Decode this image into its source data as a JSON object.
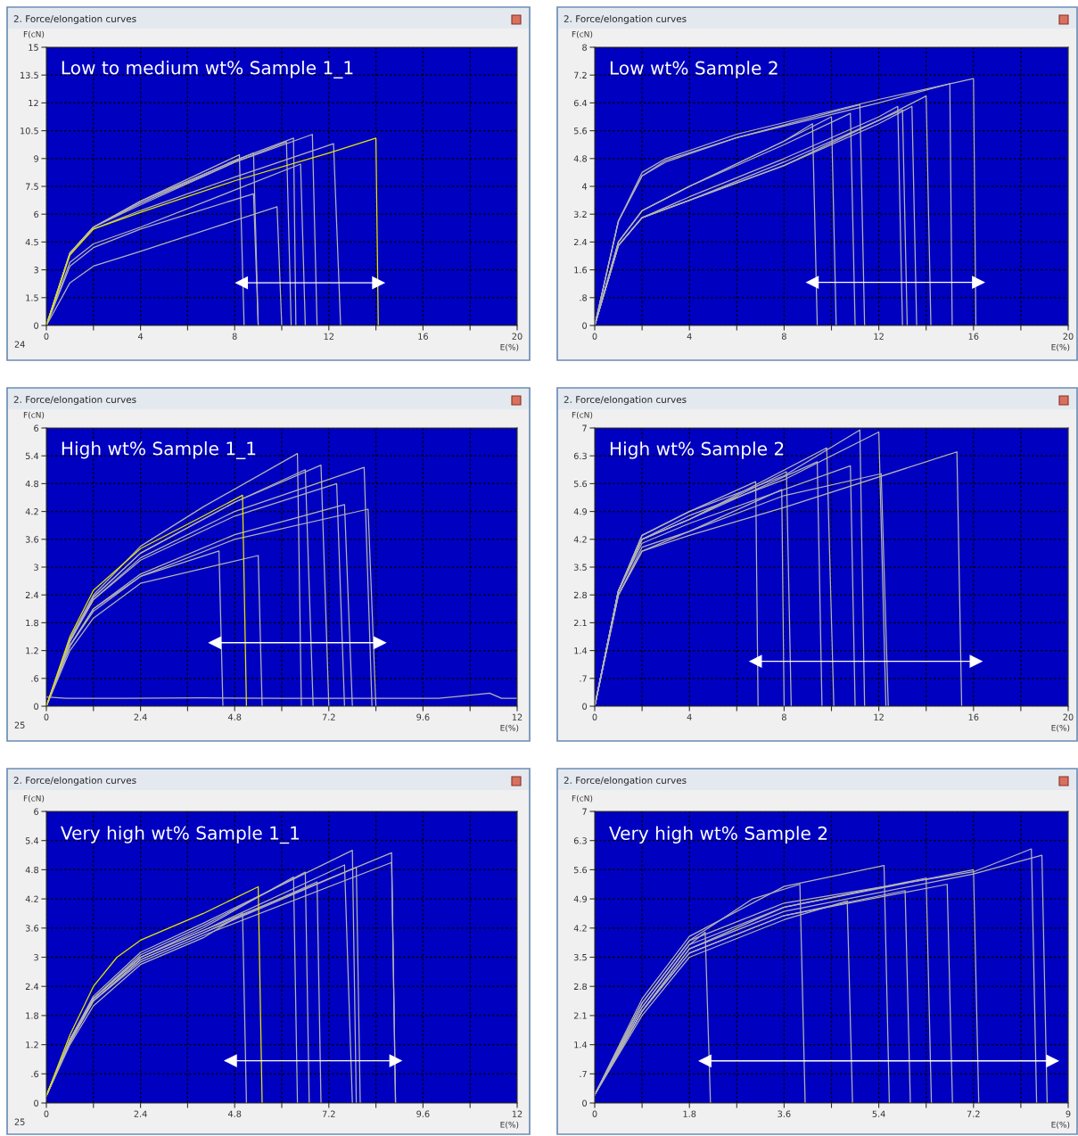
{
  "chart_data": [
    {
      "type": "line",
      "title": "2. Force/elongation curves",
      "subtitle": "Low to medium wt% Sample 1_1",
      "ylabel": "F(cN)",
      "xlabel": "E(%)",
      "annotations": [
        "24"
      ],
      "grid": true,
      "xlim": [
        0,
        20
      ],
      "ylim": [
        0,
        15
      ],
      "xticks": [
        0,
        {
          "value": 2,
          "label": null
        },
        4,
        {
          "value": 6,
          "label": null
        },
        8,
        {
          "value": 10,
          "label": null
        },
        12,
        {
          "value": 14,
          "label": null
        },
        16,
        {
          "value": 18,
          "label": null
        },
        20
      ],
      "yticks": [
        0,
        1.5,
        3,
        4.5,
        6,
        7.5,
        9,
        10.5,
        12,
        13.5,
        15
      ],
      "series": [
        {
          "color": "#b4b4b4",
          "x": [
            0,
            1,
            2,
            4,
            8,
            10.5,
            10.6
          ],
          "values": [
            0,
            3.9,
            5.3,
            6.6,
            8.9,
            10.1,
            0
          ]
        },
        {
          "color": "#b4b4b4",
          "x": [
            0,
            1,
            2,
            4,
            8,
            11.3,
            11.5
          ],
          "values": [
            0,
            3.9,
            5.3,
            6.5,
            8.8,
            10.3,
            0
          ]
        },
        {
          "color": "#b4b4b4",
          "x": [
            0,
            1,
            2,
            4,
            8,
            12.2,
            12.5
          ],
          "values": [
            0,
            3.9,
            5.2,
            6.2,
            8.0,
            9.8,
            0
          ]
        },
        {
          "color": "#b4b4b4",
          "x": [
            0,
            1,
            2,
            4,
            8.2,
            8.4
          ],
          "values": [
            0,
            3.9,
            5.3,
            6.7,
            9.2,
            0
          ]
        },
        {
          "color": "#b4b4b4",
          "x": [
            0,
            1,
            2,
            4,
            8.8,
            9.0
          ],
          "values": [
            0,
            3.9,
            5.3,
            6.7,
            9.3,
            0
          ]
        },
        {
          "color": "#b4b4b4",
          "x": [
            0,
            1,
            2,
            4,
            8,
            10.2,
            10.4
          ],
          "values": [
            0,
            3.9,
            5.3,
            6.6,
            8.8,
            9.9,
            0
          ]
        },
        {
          "color": "#b4b4b4",
          "x": [
            0,
            1,
            2,
            4,
            8,
            10.8,
            11
          ],
          "values": [
            0,
            3.4,
            4.4,
            5.3,
            7.3,
            8.7,
            0
          ]
        },
        {
          "color": "#b4b4b4",
          "x": [
            0,
            1,
            2,
            4,
            8.8,
            9.0
          ],
          "values": [
            0,
            3.2,
            4.2,
            5.2,
            7.1,
            0
          ]
        },
        {
          "color": "#b4b4b4",
          "x": [
            0,
            1,
            2,
            4,
            9.8,
            10.0
          ],
          "values": [
            0,
            2.3,
            3.2,
            4.0,
            6.4,
            0
          ]
        },
        {
          "color": "#e6e600",
          "x": [
            0,
            1,
            2,
            4,
            8,
            12,
            14,
            14.1
          ],
          "values": [
            0,
            3.8,
            5.2,
            6.1,
            7.8,
            9.3,
            10.1,
            0
          ]
        },
        {
          "color": "#ffffff",
          "marker": "triangle",
          "x": [
            8.3,
            14.1
          ],
          "values": [
            2.3,
            2.3
          ]
        }
      ]
    },
    {
      "type": "line",
      "title": "2. Force/elongation curves",
      "subtitle": "Low wt% Sample 2",
      "ylabel": "F(cN)",
      "xlabel": "E(%)",
      "grid": true,
      "xlim": [
        0,
        20
      ],
      "ylim": [
        0,
        8
      ],
      "xticks": [
        0,
        {
          "value": 2,
          "label": null
        },
        4,
        {
          "value": 6,
          "label": null
        },
        8,
        {
          "value": 10,
          "label": null
        },
        12,
        {
          "value": 14,
          "label": null
        },
        16,
        {
          "value": 18,
          "label": null
        },
        20
      ],
      "yticks": [
        0,
        {
          "value": 0.8,
          "label": ".8"
        },
        1.6,
        2.4,
        3.2,
        4,
        4.8,
        5.6,
        6.4,
        7.2,
        8
      ],
      "series": [
        {
          "color": "#b4b4b4",
          "x": [
            0,
            1,
            2,
            3,
            6,
            12,
            16,
            16.1
          ],
          "values": [
            0,
            3.0,
            4.4,
            4.8,
            5.5,
            6.5,
            7.1,
            0
          ]
        },
        {
          "color": "#b4b4b4",
          "x": [
            0,
            1,
            2,
            3,
            6,
            12,
            15,
            15.1
          ],
          "values": [
            0,
            3.0,
            4.3,
            4.75,
            5.4,
            6.4,
            6.95,
            0
          ]
        },
        {
          "color": "#b4b4b4",
          "x": [
            0,
            1,
            2,
            3,
            6,
            11.2,
            11.4
          ],
          "values": [
            0,
            3.0,
            4.3,
            4.7,
            5.4,
            6.35,
            0
          ]
        },
        {
          "color": "#b4b4b4",
          "x": [
            0,
            1,
            2,
            4,
            8,
            10.8,
            11
          ],
          "values": [
            0,
            2.4,
            3.3,
            4.0,
            5.2,
            6.1,
            0
          ]
        },
        {
          "color": "#b4b4b4",
          "x": [
            0,
            1,
            2,
            4,
            8,
            10,
            10.2
          ],
          "values": [
            0,
            2.4,
            3.3,
            4.0,
            5.3,
            6.0,
            0
          ]
        },
        {
          "color": "#b4b4b4",
          "x": [
            0,
            1,
            2,
            4,
            8,
            9.2,
            9.4
          ],
          "values": [
            0,
            2.4,
            3.3,
            4.0,
            5.3,
            5.8,
            0
          ]
        },
        {
          "color": "#b4b4b4",
          "x": [
            0,
            1,
            2,
            4,
            8,
            12,
            14,
            14.2
          ],
          "values": [
            0,
            2.3,
            3.1,
            3.6,
            4.6,
            5.9,
            6.6,
            0
          ]
        },
        {
          "color": "#b4b4b4",
          "x": [
            0,
            1,
            2,
            4,
            8,
            12,
            13.4,
            13.6
          ],
          "values": [
            0,
            2.3,
            3.1,
            3.6,
            4.6,
            5.8,
            6.3,
            0
          ]
        },
        {
          "color": "#b4b4b4",
          "x": [
            0,
            1,
            2,
            4,
            8,
            12,
            12.8,
            13
          ],
          "values": [
            0,
            2.3,
            3.1,
            3.7,
            4.8,
            6.0,
            6.3,
            0
          ]
        },
        {
          "color": "#b4b4b4",
          "x": [
            0,
            1,
            2,
            4,
            8,
            12,
            13,
            13.2
          ],
          "values": [
            0,
            2.3,
            3.1,
            3.6,
            4.7,
            5.9,
            6.2,
            0
          ]
        },
        {
          "color": "#ffffff",
          "marker": "triangle",
          "x": [
            9.2,
            16.2
          ],
          "values": [
            1.24,
            1.24
          ]
        }
      ]
    },
    {
      "type": "line",
      "title": "2. Force/elongation curves",
      "subtitle": "High wt% Sample 1_1",
      "ylabel": "F(cN)",
      "xlabel": "E(%)",
      "annotations": [
        "25"
      ],
      "grid": true,
      "xlim": [
        0,
        12
      ],
      "ylim": [
        0,
        6
      ],
      "xticks": [
        0,
        {
          "value": 1.2,
          "label": null
        },
        2.4,
        {
          "value": 3.6,
          "label": null
        },
        4.8,
        {
          "value": 6,
          "label": null
        },
        7.2,
        {
          "value": 8.4,
          "label": null
        },
        9.6,
        {
          "value": 10.8,
          "label": null
        },
        12
      ],
      "yticks": [
        0,
        {
          "value": 0.6,
          "label": ".6"
        },
        1.2,
        1.8,
        2.4,
        3,
        3.6,
        4.2,
        4.8,
        5.4,
        6
      ],
      "series": [
        {
          "color": "#b4b4b4",
          "x": [
            0,
            0.5,
            2,
            4,
            6,
            8,
            10,
            11.3,
            11.6,
            12
          ],
          "values": [
            0.2,
            0.17,
            0.17,
            0.18,
            0.17,
            0.17,
            0.17,
            0.28,
            0.17,
            0.17
          ]
        },
        {
          "color": "#b4b4b4",
          "x": [
            0,
            0.6,
            1.2,
            2.4,
            4,
            6.4,
            6.5
          ],
          "values": [
            0,
            1.45,
            2.4,
            3.45,
            4.3,
            5.45,
            0
          ]
        },
        {
          "color": "#b4b4b4",
          "x": [
            0,
            0.6,
            1.2,
            2.4,
            4.8,
            8.1,
            8.3
          ],
          "values": [
            0,
            1.4,
            2.3,
            3.2,
            4.2,
            5.15,
            0
          ]
        },
        {
          "color": "#b4b4b4",
          "x": [
            0,
            0.6,
            1.2,
            2.4,
            4.8,
            7.0,
            7.2
          ],
          "values": [
            0,
            1.4,
            2.35,
            3.3,
            4.4,
            5.2,
            0
          ]
        },
        {
          "color": "#b4b4b4",
          "x": [
            0,
            0.6,
            1.2,
            2.4,
            4.8,
            6.6,
            6.8
          ],
          "values": [
            0,
            1.4,
            2.35,
            3.3,
            4.4,
            5.1,
            0
          ]
        },
        {
          "color": "#b4b4b4",
          "x": [
            0,
            0.6,
            1.2,
            2.4,
            4.8,
            7.4,
            7.6
          ],
          "values": [
            0,
            1.4,
            2.3,
            3.15,
            4.1,
            4.8,
            0
          ]
        },
        {
          "color": "#b4b4b4",
          "x": [
            0,
            0.6,
            1.2,
            2.4,
            4.8,
            7.6,
            7.8
          ],
          "values": [
            0,
            1.3,
            2.1,
            2.85,
            3.7,
            4.35,
            0
          ]
        },
        {
          "color": "#b4b4b4",
          "x": [
            0,
            0.6,
            1.2,
            2.4,
            4.8,
            8.2,
            8.4
          ],
          "values": [
            0,
            1.3,
            2.1,
            2.8,
            3.6,
            4.25,
            0
          ]
        },
        {
          "color": "#b4b4b4",
          "x": [
            0,
            0.6,
            1.2,
            2.4,
            5.4,
            5.5
          ],
          "values": [
            0,
            1.2,
            1.9,
            2.65,
            3.25,
            0
          ]
        },
        {
          "color": "#b4b4b4",
          "x": [
            0,
            0.6,
            1.2,
            2.4,
            4.4,
            4.5
          ],
          "values": [
            0,
            1.3,
            2.05,
            2.8,
            3.35,
            0
          ]
        },
        {
          "color": "#e6e600",
          "x": [
            0,
            0.6,
            1.2,
            2.4,
            4,
            5.0,
            5.1
          ],
          "values": [
            0,
            1.5,
            2.5,
            3.4,
            4.1,
            4.55,
            0
          ]
        },
        {
          "color": "#ffffff",
          "marker": "triangle",
          "x": [
            4.3,
            8.5
          ],
          "values": [
            1.37,
            1.37
          ]
        }
      ]
    },
    {
      "type": "line",
      "title": "2. Force/elongation curves",
      "subtitle": "High wt% Sample 2",
      "ylabel": "F(cN)",
      "xlabel": "E(%)",
      "grid": true,
      "xlim": [
        0,
        20
      ],
      "ylim": [
        0,
        7
      ],
      "xticks": [
        0,
        {
          "value": 2,
          "label": null
        },
        4,
        {
          "value": 6,
          "label": null
        },
        8,
        {
          "value": 10,
          "label": null
        },
        12,
        {
          "value": 14,
          "label": null
        },
        16,
        {
          "value": 18,
          "label": null
        },
        20
      ],
      "yticks": [
        0,
        {
          "value": 0.7,
          "label": ".7"
        },
        1.4,
        2.1,
        2.8,
        3.5,
        4.2,
        4.9,
        5.6,
        6.3,
        7
      ],
      "series": [
        {
          "color": "#b4b4b4",
          "x": [
            0,
            1,
            2,
            4,
            8,
            11.2,
            11.4
          ],
          "values": [
            0,
            2.9,
            4.3,
            4.9,
            5.8,
            6.95,
            0
          ]
        },
        {
          "color": "#b4b4b4",
          "x": [
            0,
            1,
            2,
            4,
            8,
            12,
            12.3
          ],
          "values": [
            0,
            2.9,
            4.2,
            4.8,
            5.7,
            6.9,
            0
          ]
        },
        {
          "color": "#b4b4b4",
          "x": [
            0,
            1,
            2,
            4,
            8,
            15.3,
            15.5
          ],
          "values": [
            0,
            2.8,
            3.9,
            4.3,
            5.0,
            6.4,
            0
          ]
        },
        {
          "color": "#b4b4b4",
          "x": [
            0,
            1,
            2,
            4,
            8,
            12.1,
            12.4
          ],
          "values": [
            0,
            2.8,
            4.0,
            4.4,
            5.3,
            5.85,
            0
          ]
        },
        {
          "color": "#b4b4b4",
          "x": [
            0,
            1,
            2,
            4,
            10.8,
            11
          ],
          "values": [
            0,
            2.9,
            4.1,
            4.6,
            6.05,
            0
          ]
        },
        {
          "color": "#b4b4b4",
          "x": [
            0,
            1,
            2,
            4,
            9.8,
            10.1
          ],
          "values": [
            0,
            2.9,
            4.2,
            4.7,
            6.5,
            0
          ]
        },
        {
          "color": "#b4b4b4",
          "x": [
            0,
            1,
            2,
            4,
            9.4,
            9.6
          ],
          "values": [
            0,
            2.9,
            4.2,
            4.7,
            6.15,
            0
          ]
        },
        {
          "color": "#b4b4b4",
          "x": [
            0,
            1,
            2,
            4,
            8.1,
            8.3
          ],
          "values": [
            0,
            2.9,
            4.2,
            4.7,
            5.9,
            0
          ]
        },
        {
          "color": "#b4b4b4",
          "x": [
            0,
            1,
            2,
            4,
            6.8,
            6.9
          ],
          "values": [
            0,
            2.9,
            4.3,
            4.9,
            5.65,
            0
          ]
        },
        {
          "color": "#b4b4b4",
          "x": [
            0,
            1,
            2,
            4,
            7.9,
            8.0
          ],
          "values": [
            0,
            2.8,
            3.9,
            4.4,
            5.45,
            0
          ]
        },
        {
          "color": "#ffffff",
          "marker": "triangle",
          "x": [
            6.8,
            16.1
          ],
          "values": [
            1.13,
            1.13
          ]
        }
      ]
    },
    {
      "type": "line",
      "title": "2. Force/elongation curves",
      "subtitle": "Very high wt% Sample 1_1",
      "ylabel": "F(cN)",
      "xlabel": "E(%)",
      "annotations": [
        "25"
      ],
      "grid": true,
      "xlim": [
        0,
        12
      ],
      "ylim": [
        0,
        6
      ],
      "xticks": [
        0,
        {
          "value": 1.2,
          "label": null
        },
        2.4,
        {
          "value": 3.6,
          "label": null
        },
        4.8,
        {
          "value": 6,
          "label": null
        },
        7.2,
        {
          "value": 8.4,
          "label": null
        },
        9.6,
        {
          "value": 10.8,
          "label": null
        },
        12
      ],
      "yticks": [
        0,
        {
          "value": 0.6,
          "label": ".6"
        },
        1.2,
        1.8,
        2.4,
        3,
        3.6,
        4.2,
        4.8,
        5.4,
        6
      ],
      "series": [
        {
          "color": "#b4b4b4",
          "x": [
            0,
            0.6,
            1.2,
            2.4,
            4,
            7.8,
            7.9
          ],
          "values": [
            0.15,
            1.3,
            2.2,
            3.1,
            3.7,
            5.2,
            0
          ]
        },
        {
          "color": "#b4b4b4",
          "x": [
            0,
            0.6,
            1.2,
            2.4,
            4,
            8.8,
            8.9
          ],
          "values": [
            0.15,
            1.3,
            2.15,
            3.0,
            3.55,
            5.15,
            0
          ]
        },
        {
          "color": "#b4b4b4",
          "x": [
            0,
            0.6,
            1.2,
            2.4,
            4,
            8.8,
            8.9
          ],
          "values": [
            0.15,
            1.25,
            2.1,
            2.9,
            3.45,
            4.95,
            0
          ]
        },
        {
          "color": "#b4b4b4",
          "x": [
            0,
            0.6,
            1.2,
            2.4,
            4,
            7.6,
            7.8
          ],
          "values": [
            0.15,
            1.3,
            2.15,
            3.0,
            3.55,
            4.9,
            0
          ]
        },
        {
          "color": "#b4b4b4",
          "x": [
            0,
            0.6,
            1.2,
            2.4,
            4,
            7.9,
            8.0
          ],
          "values": [
            0.15,
            1.25,
            2.1,
            2.95,
            3.5,
            4.85,
            0
          ]
        },
        {
          "color": "#b4b4b4",
          "x": [
            0,
            0.6,
            1.2,
            2.4,
            4,
            6.3,
            6.4
          ],
          "values": [
            0.15,
            1.3,
            2.15,
            3.0,
            3.6,
            4.65,
            0
          ]
        },
        {
          "color": "#b4b4b4",
          "x": [
            0,
            0.6,
            1.2,
            2.4,
            4,
            6.6,
            6.7
          ],
          "values": [
            0.15,
            1.3,
            2.15,
            3.05,
            3.65,
            4.75,
            0
          ]
        },
        {
          "color": "#b4b4b4",
          "x": [
            0,
            0.6,
            1.2,
            2.4,
            4,
            6.9,
            7.0
          ],
          "values": [
            0.15,
            1.25,
            2.1,
            2.95,
            3.5,
            4.55,
            0
          ]
        },
        {
          "color": "#b4b4b4",
          "x": [
            0,
            0.6,
            1.2,
            2.4,
            4,
            5.0,
            5.1
          ],
          "values": [
            0.15,
            1.2,
            2.0,
            2.85,
            3.4,
            3.9,
            0
          ]
        },
        {
          "color": "#e6e600",
          "x": [
            0,
            0.6,
            1.2,
            1.8,
            2.4,
            4,
            5.4,
            5.5
          ],
          "values": [
            0.15,
            1.4,
            2.4,
            3.0,
            3.35,
            3.9,
            4.45,
            0
          ]
        },
        {
          "color": "#ffffff",
          "marker": "triangle",
          "x": [
            4.7,
            8.9
          ],
          "values": [
            0.87,
            0.87
          ]
        }
      ]
    },
    {
      "type": "line",
      "title": "2. Force/elongation curves",
      "subtitle": "Very high wt% Sample 2",
      "ylabel": "F(cN)",
      "xlabel": "E(%)",
      "grid": true,
      "xlim": [
        0,
        9
      ],
      "ylim": [
        0,
        7
      ],
      "xticks": [
        0,
        {
          "value": 0.9,
          "label": null
        },
        1.8,
        {
          "value": 2.7,
          "label": null
        },
        3.6,
        {
          "value": 4.5,
          "label": null
        },
        5.4,
        {
          "value": 6.3,
          "label": null
        },
        7.2,
        {
          "value": 8.1,
          "label": null
        },
        9
      ],
      "yticks": [
        0,
        {
          "value": 0.7,
          "label": ".7"
        },
        1.4,
        2.1,
        2.8,
        3.5,
        4.2,
        4.9,
        5.6,
        6.3,
        7
      ],
      "series": [
        {
          "color": "#b4b4b4",
          "x": [
            0,
            0.9,
            1.8,
            3.6,
            7.2,
            8.3,
            8.4
          ],
          "values": [
            0.2,
            2.4,
            3.9,
            4.8,
            5.55,
            6.1,
            0
          ]
        },
        {
          "color": "#b4b4b4",
          "x": [
            0,
            0.9,
            1.8,
            3.6,
            7.2,
            8.5,
            8.6
          ],
          "values": [
            0.2,
            2.2,
            3.7,
            4.6,
            5.5,
            5.95,
            0
          ]
        },
        {
          "color": "#b4b4b4",
          "x": [
            0,
            0.9,
            1.8,
            3.6,
            5.5,
            5.6
          ],
          "values": [
            0.2,
            2.5,
            4.0,
            5.2,
            5.7,
            0
          ]
        },
        {
          "color": "#b4b4b4",
          "x": [
            0,
            0.9,
            1.8,
            3.6,
            7.2,
            7.3
          ],
          "values": [
            0.2,
            2.2,
            3.7,
            4.7,
            5.6,
            0
          ]
        },
        {
          "color": "#b4b4b4",
          "x": [
            0,
            0.9,
            1.8,
            3.6,
            6.7,
            6.8
          ],
          "values": [
            0.2,
            2.2,
            3.6,
            4.5,
            5.25,
            0
          ]
        },
        {
          "color": "#b4b4b4",
          "x": [
            0,
            0.9,
            1.8,
            3.0,
            3.9,
            4.0
          ],
          "values": [
            0.2,
            2.4,
            3.9,
            4.9,
            5.25,
            0
          ]
        },
        {
          "color": "#b4b4b4",
          "x": [
            0,
            0.9,
            1.8,
            3.6,
            6.3,
            6.4
          ],
          "values": [
            0.2,
            2.3,
            3.8,
            4.7,
            5.4,
            0
          ]
        },
        {
          "color": "#b4b4b4",
          "x": [
            0,
            0.9,
            1.8,
            2.1,
            2.2
          ],
          "values": [
            0.2,
            2.3,
            3.8,
            4.1,
            0
          ]
        },
        {
          "color": "#b4b4b4",
          "x": [
            0,
            0.9,
            1.8,
            3.6,
            4.8,
            4.9
          ],
          "values": [
            0.2,
            2.1,
            3.5,
            4.4,
            4.85,
            0
          ]
        },
        {
          "color": "#b4b4b4",
          "x": [
            0,
            0.9,
            1.8,
            3.6,
            5.9,
            6.0
          ],
          "values": [
            0.2,
            2.2,
            3.6,
            4.5,
            5.1,
            0
          ]
        },
        {
          "color": "#ffffff",
          "marker": "triangle",
          "x": [
            2.1,
            8.7
          ],
          "values": [
            1.01,
            1.01
          ]
        }
      ]
    }
  ]
}
